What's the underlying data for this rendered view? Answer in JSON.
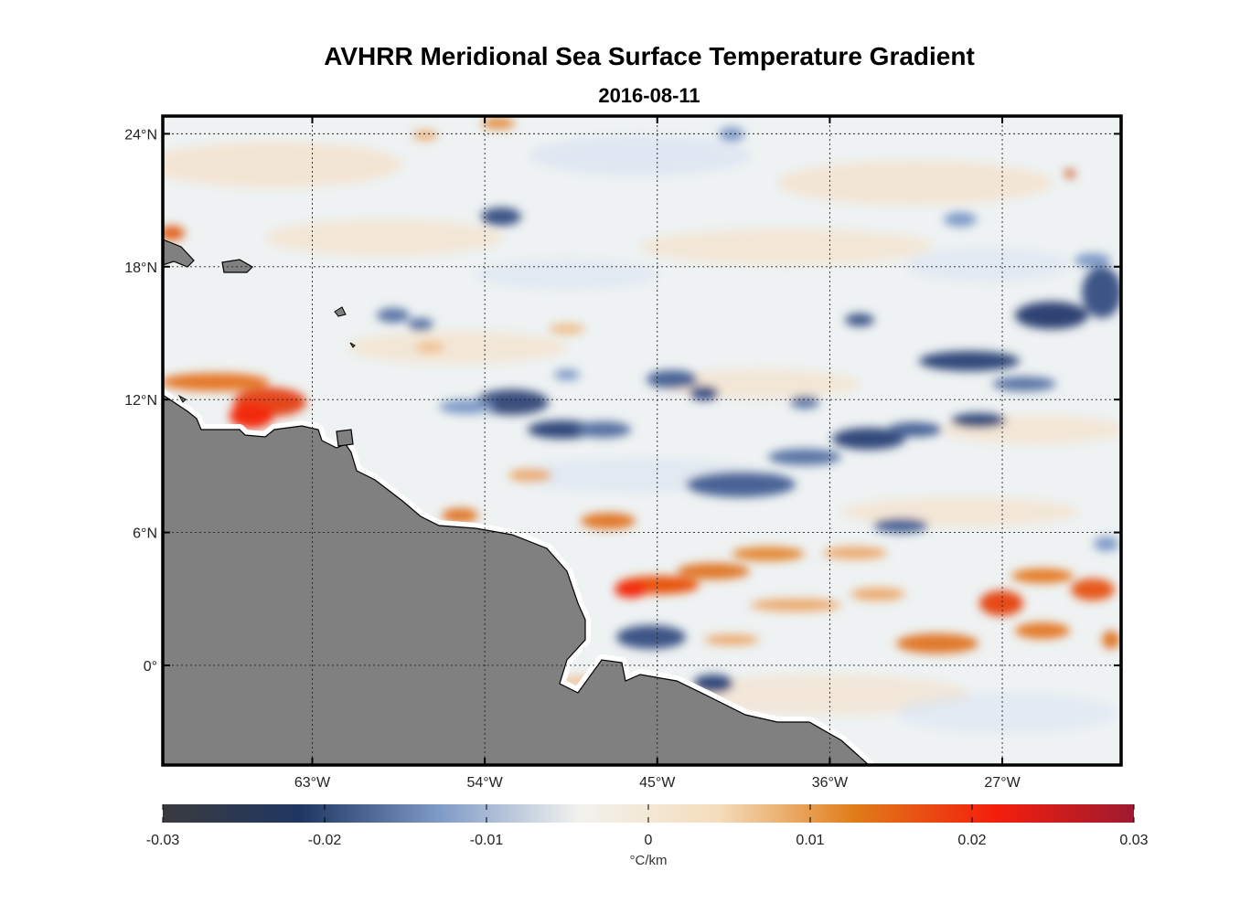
{
  "title": "AVHRR Meridional Sea Surface Temperature Gradient",
  "subtitle": "2016-08-11",
  "chart_data": {
    "type": "heatmap",
    "title": "AVHRR Meridional Sea Surface Temperature Gradient",
    "subtitle": "2016-08-11",
    "variable": "meridional SST gradient",
    "lon_range": [
      -70.8,
      -20.8
    ],
    "lat_range": [
      -4.5,
      24.8
    ],
    "x_ticks": [
      {
        "value": -63,
        "label": "63°W"
      },
      {
        "value": -54,
        "label": "54°W"
      },
      {
        "value": -45,
        "label": "45°W"
      },
      {
        "value": -36,
        "label": "36°W"
      },
      {
        "value": -27,
        "label": "27°W"
      }
    ],
    "y_ticks": [
      {
        "value": 24,
        "label": "24°N"
      },
      {
        "value": 18,
        "label": "18°N"
      },
      {
        "value": 12,
        "label": "12°N"
      },
      {
        "value": 6,
        "label": "6°N"
      },
      {
        "value": 0,
        "label": "0°"
      }
    ],
    "grid": true,
    "colorbar": {
      "range": [
        -0.03,
        0.03
      ],
      "ticks": [
        "-0.03",
        "-0.02",
        "-0.01",
        "0",
        "0.01",
        "0.02",
        "0.03"
      ],
      "units": "°C/km",
      "colors": [
        "#3a3a3e",
        "#1f3763",
        "#7f9bc8",
        "#f2f2ee",
        "#f5ddbc",
        "#e07b18",
        "#f41e0c",
        "#9e1a30"
      ]
    },
    "land_color": "#808080",
    "features": [
      {
        "type": "positive",
        "lon": -64.5,
        "lat": 11.5,
        "value": 0.02
      },
      {
        "type": "positive",
        "lon": -44.5,
        "lat": 4.0,
        "value": 0.015
      },
      {
        "type": "positive",
        "lon": -26.0,
        "lat": 2.8,
        "value": 0.016
      },
      {
        "type": "positive",
        "lon": -32.5,
        "lat": 0.8,
        "value": 0.012
      },
      {
        "type": "positive",
        "lon": -47.0,
        "lat": 6.2,
        "value": 0.012
      },
      {
        "type": "negative",
        "lon": -52.5,
        "lat": 11.5,
        "value": -0.018
      },
      {
        "type": "negative",
        "lon": -38.0,
        "lat": 10.0,
        "value": -0.017
      },
      {
        "type": "negative",
        "lon": -28.5,
        "lat": 16.0,
        "value": -0.02
      },
      {
        "type": "negative",
        "lon": -47.0,
        "lat": 1.0,
        "value": -0.017
      },
      {
        "type": "negative",
        "lon": -33.0,
        "lat": 13.5,
        "value": -0.018
      }
    ]
  }
}
